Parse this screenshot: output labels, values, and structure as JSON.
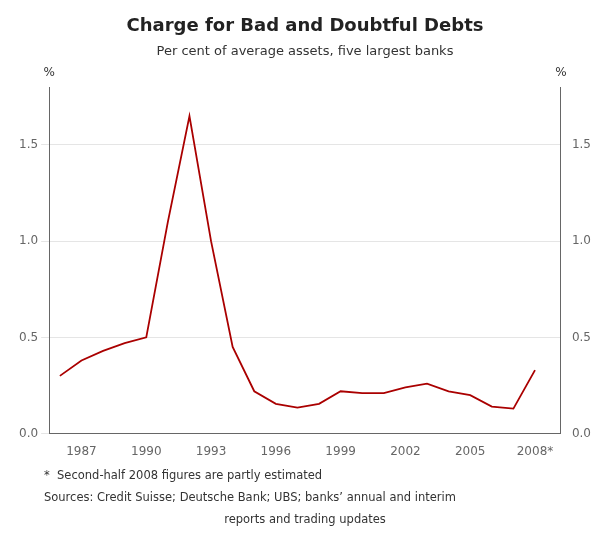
{
  "chart_data": {
    "type": "line",
    "title": "Charge for Bad and Doubtful Debts",
    "subtitle": "Per cent of average assets, five largest banks",
    "ylabel": "%",
    "y2label": "%",
    "footnotes": [
      "*  Second-half 2008 figures are partly estimated",
      "Sources: Credit Suisse; Deutsche Bank; UBS; banks’ annual and interim",
      "reports and trading updates"
    ],
    "x": [
      1986,
      1987,
      1988,
      1989,
      1990,
      1991,
      1992,
      1993,
      1994,
      1995,
      1996,
      1997,
      1998,
      1999,
      2000,
      2001,
      2002,
      2003,
      2004,
      2005,
      2006,
      2007,
      2008
    ],
    "values": [
      0.3,
      0.38,
      0.43,
      0.47,
      0.5,
      1.1,
      1.65,
      1.0,
      0.45,
      0.22,
      0.155,
      0.135,
      0.155,
      0.22,
      0.21,
      0.21,
      0.24,
      0.26,
      0.22,
      0.2,
      0.14,
      0.13,
      0.33
    ],
    "color": "#aa0000",
    "xlim": [
      1985.5,
      2009.2
    ],
    "xticks": [
      1987,
      1990,
      1993,
      1996,
      1999,
      2002,
      2005,
      {
        "value": 2008,
        "label": "2008*"
      }
    ],
    "ylim": [
      0.0,
      1.8
    ],
    "yticks": [
      {
        "value": 0,
        "label": "0.0"
      },
      0.5,
      {
        "value": 1,
        "label": "1.0"
      },
      1.5
    ],
    "y2lim": [
      0.0,
      1.8
    ],
    "y2ticks": [
      {
        "value": 0,
        "label": "0.0"
      },
      0.5,
      {
        "value": 1,
        "label": "1.0"
      },
      1.5
    ],
    "grid": true
  }
}
